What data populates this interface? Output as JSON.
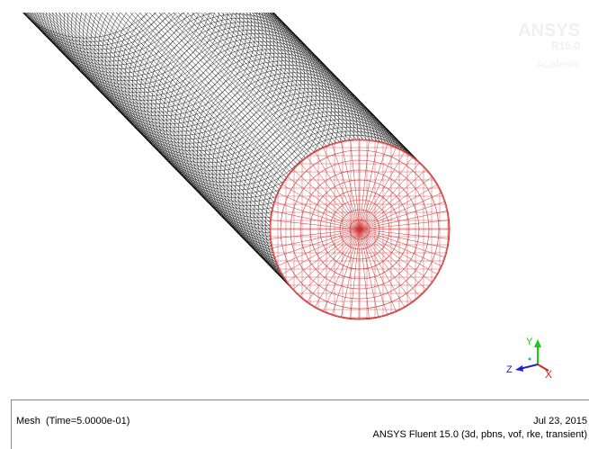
{
  "viewer": {
    "logo": {
      "name": "ANSYS",
      "version": "R15.0",
      "edition": "Academic"
    },
    "axes": {
      "y": "Y",
      "z": "Z",
      "x": "X"
    }
  },
  "footer": {
    "left": "Mesh  (Time=5.0000e-01)",
    "date": "Jul 23, 2015",
    "product": "ANSYS Fluent 15.0 (3d, pbns, vof, rke, transient)"
  }
}
